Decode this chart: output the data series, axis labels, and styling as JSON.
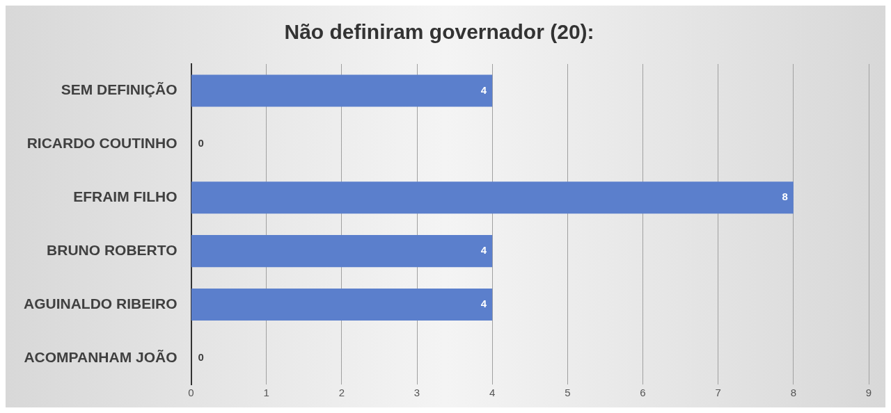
{
  "chart_data": {
    "type": "bar",
    "orientation": "horizontal",
    "title": "Não definiram governador (20):",
    "categories": [
      "SEM DEFINIÇÃO",
      "RICARDO COUTINHO",
      "EFRAIM FILHO",
      "BRUNO ROBERTO",
      "AGUINALDO RIBEIRO",
      "ACOMPANHAM JOÃO"
    ],
    "values": [
      4,
      0,
      8,
      4,
      4,
      0
    ],
    "color": "#5b7fcc",
    "xlim": [
      0,
      9
    ],
    "xticks": [
      0,
      1,
      2,
      3,
      4,
      5,
      6,
      7,
      8,
      9
    ],
    "grid": "x",
    "data_labels": true,
    "legend": false
  }
}
